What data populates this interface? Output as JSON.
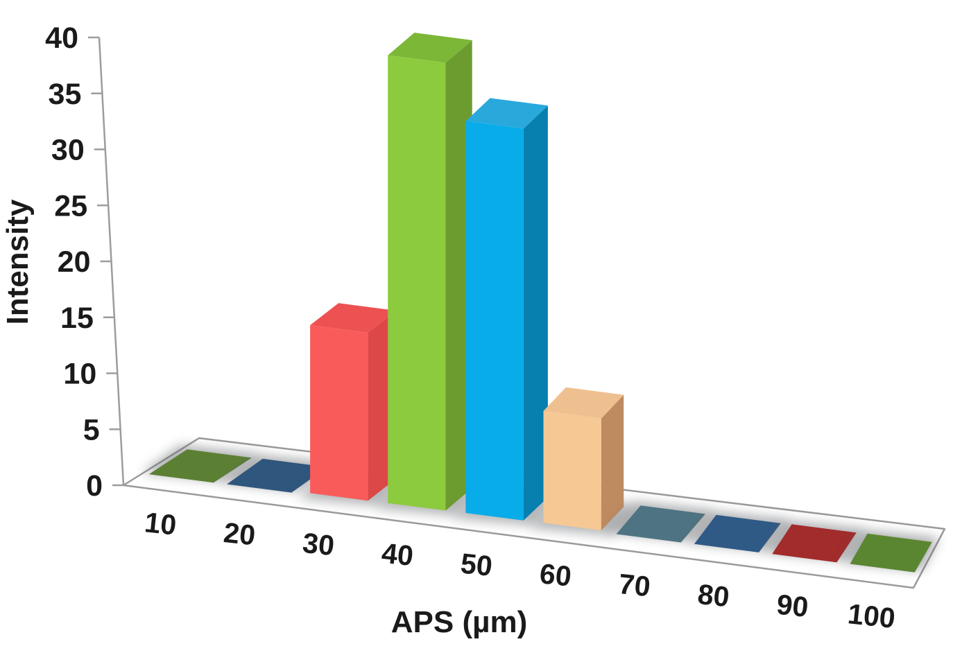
{
  "chart_data": {
    "type": "bar",
    "projection": "3d",
    "title": "",
    "xlabel": "APS (µm)",
    "ylabel": "Intensity",
    "categories": [
      10,
      20,
      30,
      40,
      50,
      60,
      70,
      80,
      90,
      100
    ],
    "values": [
      0,
      0,
      15,
      40,
      35,
      10,
      0,
      0,
      0,
      0
    ],
    "ylim": [
      0,
      40
    ],
    "ytick_step": 5,
    "ytick_labels": [
      "0",
      "5",
      "10",
      "15",
      "20",
      "25",
      "30",
      "35",
      "40"
    ],
    "grid": false,
    "legend": "none",
    "vary_colors_by_point": true,
    "point_colors": [
      {
        "face": "#5C8033"
      },
      {
        "face": "#2F567D"
      },
      {
        "face": "#F95B5B",
        "side": "#DD4747",
        "top": "#ED5151"
      },
      {
        "face": "#8CCB3E",
        "side": "#6C9C30",
        "top": "#7CB737"
      },
      {
        "face": "#07ACE9",
        "side": "#0780AF",
        "top": "#29A8DC"
      },
      {
        "face": "#F6C894",
        "side": "#BE8B61",
        "top": "#EFC08F"
      },
      {
        "face": "#4E7483"
      },
      {
        "face": "#2F5A86"
      },
      {
        "face": "#A22B2B"
      },
      {
        "face": "#5A8631"
      }
    ]
  },
  "style_colors": {
    "axis_line": "#9c9c9c",
    "floor_fill": "#ffffff",
    "floor_stroke": "#9a9a9a",
    "shadow": "#5b5e63",
    "label_text": "#1a1a1a"
  }
}
